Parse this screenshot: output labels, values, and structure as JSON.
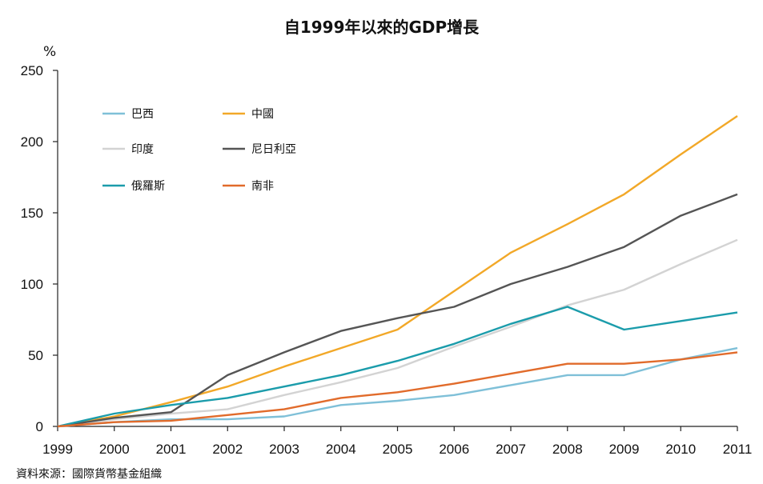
{
  "title": "自1999年以來的GDP增長",
  "unit": "%",
  "source": "資料來源：國際貨幣基金組織",
  "chart_data": {
    "type": "line",
    "title": "自1999年以來的GDP增長",
    "ylabel": "%",
    "xlabel": "",
    "x": [
      "1999",
      "2000",
      "2001",
      "2002",
      "2003",
      "2004",
      "2005",
      "2006",
      "2007",
      "2008",
      "2009",
      "2010",
      "2011"
    ],
    "ylim": [
      0,
      250
    ],
    "yticks": [
      0,
      50,
      100,
      150,
      200,
      250
    ],
    "grid": false,
    "legend_position": "top-left",
    "series": [
      {
        "name": "巴西",
        "color": "#7fc0d8",
        "values": [
          0,
          3,
          5,
          5,
          7,
          15,
          18,
          22,
          29,
          36,
          36,
          47,
          55
        ]
      },
      {
        "name": "中國",
        "color": "#f2a828",
        "values": [
          0,
          7,
          17,
          28,
          42,
          55,
          68,
          95,
          122,
          142,
          163,
          191,
          218
        ]
      },
      {
        "name": "印度",
        "color": "#d3d3d3",
        "values": [
          0,
          5,
          9,
          12,
          22,
          31,
          41,
          56,
          70,
          85,
          96,
          114,
          131
        ]
      },
      {
        "name": "尼日利亞",
        "color": "#555555",
        "values": [
          0,
          6,
          10,
          36,
          52,
          67,
          76,
          84,
          100,
          112,
          126,
          148,
          163
        ]
      },
      {
        "name": "俄羅斯",
        "color": "#1b9cab",
        "values": [
          0,
          9,
          15,
          20,
          28,
          36,
          46,
          58,
          72,
          84,
          68,
          74,
          80
        ]
      },
      {
        "name": "南非",
        "color": "#e16b2b",
        "values": [
          0,
          3,
          4,
          8,
          12,
          20,
          24,
          30,
          37,
          44,
          44,
          47,
          52
        ]
      }
    ]
  }
}
